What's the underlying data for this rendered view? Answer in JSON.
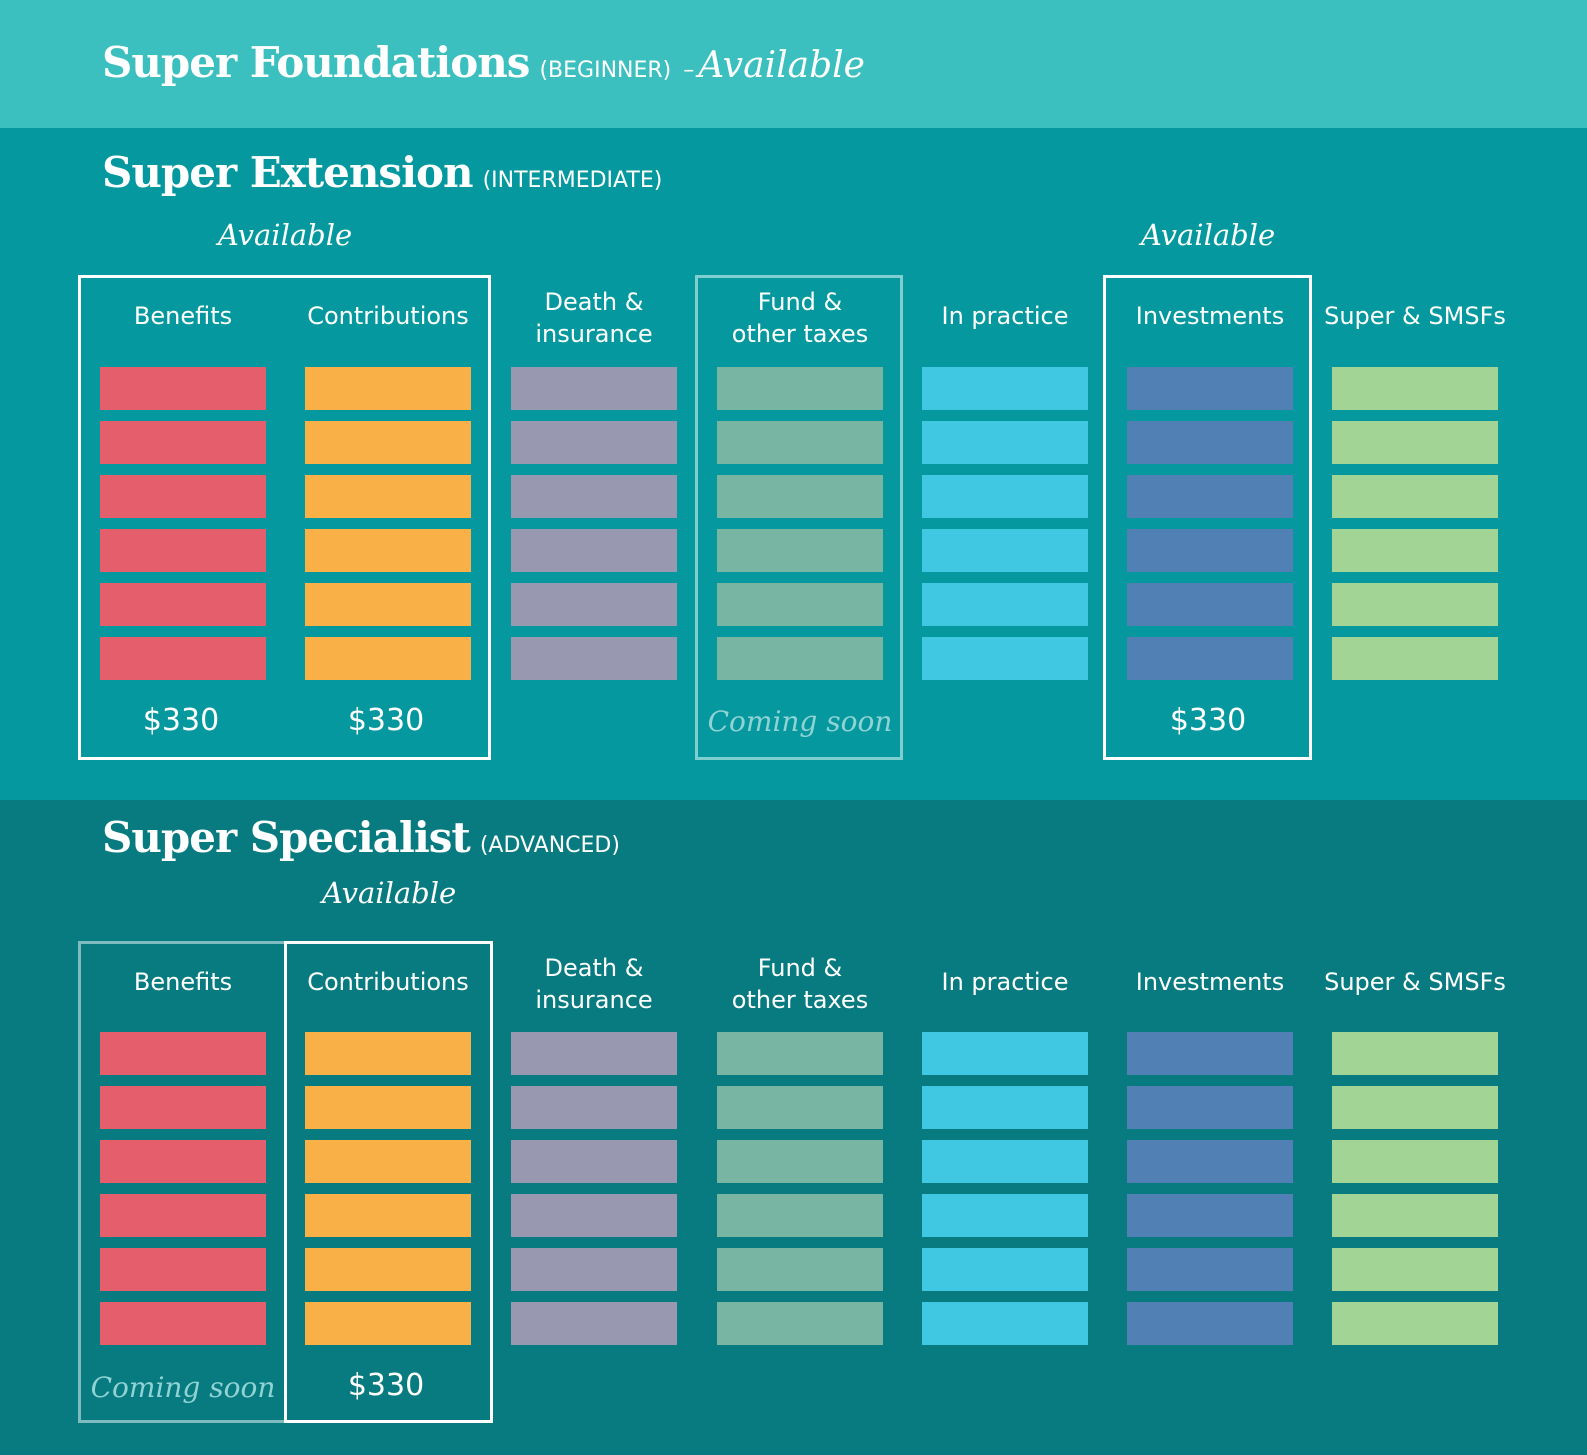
{
  "foundations": {
    "title": "Super Foundations",
    "level": "(BEGINNER)",
    "dash": "–",
    "status": "Available"
  },
  "extension": {
    "title": "Super Extension",
    "level": "(INTERMEDIATE)",
    "available_labels": [
      "Available",
      "Available"
    ],
    "columns": [
      {
        "label": "Benefits",
        "price": "$330",
        "color": "#e45e6b"
      },
      {
        "label": "Contributions",
        "price": "$330",
        "color": "#f9b046"
      },
      {
        "label": "Death & insurance",
        "label_lines": [
          "Death &",
          "insurance"
        ],
        "color": "#9899b1"
      },
      {
        "label": "Fund & other taxes",
        "label_lines": [
          "Fund &",
          "other taxes"
        ],
        "status": "Coming soon",
        "color": "#79b5a3"
      },
      {
        "label": "In practice",
        "color": "#40c7e1"
      },
      {
        "label": "Investments",
        "price": "$330",
        "color": "#5180b4"
      },
      {
        "label": "Super & SMSFs",
        "color": "#a2d495"
      }
    ]
  },
  "specialist": {
    "title": "Super Specialist",
    "level": "(ADVANCED)",
    "available_label": "Available",
    "columns": [
      {
        "label": "Benefits",
        "status": "Coming soon",
        "color": "#e45e6b"
      },
      {
        "label": "Contributions",
        "price": "$330",
        "color": "#f9b046"
      },
      {
        "label": "Death & insurance",
        "label_lines": [
          "Death &",
          "insurance"
        ],
        "color": "#9899b1"
      },
      {
        "label": "Fund & other taxes",
        "label_lines": [
          "Fund &",
          "other taxes"
        ],
        "color": "#79b5a3"
      },
      {
        "label": "In practice",
        "color": "#40c7e1"
      },
      {
        "label": "Investments",
        "color": "#5180b4"
      },
      {
        "label": "Super & SMSFs",
        "color": "#a2d495"
      }
    ]
  },
  "bars_per_column": 6
}
